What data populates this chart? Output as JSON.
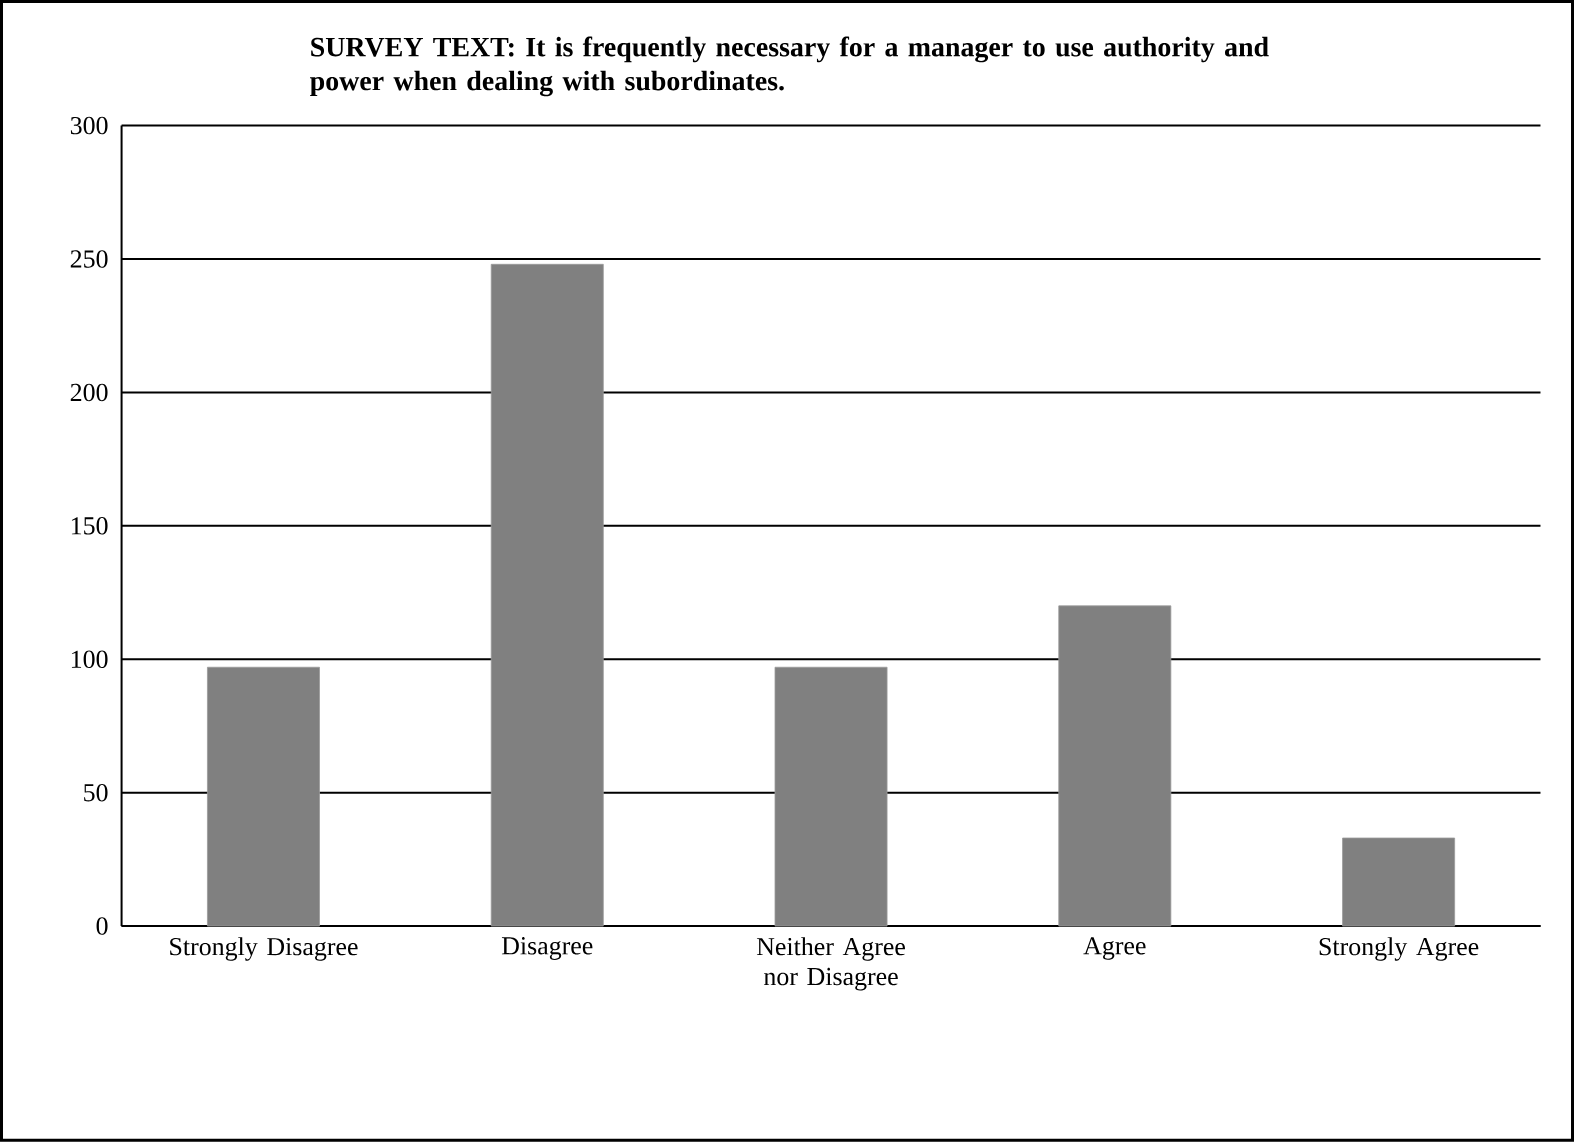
{
  "chart_data": {
    "type": "bar",
    "title": "SURVEY TEXT: It is frequently necessary for a manager to use authority and power when dealing with subordinates.",
    "categories": [
      "Strongly Disagree",
      "Disagree",
      "Neither Agree nor Disagree",
      "Agree",
      "Strongly Agree"
    ],
    "values": [
      97,
      248,
      97,
      120,
      33
    ],
    "color": "#808080",
    "ylim": [
      0,
      300
    ],
    "yticks": [
      0,
      50,
      100,
      150,
      200,
      250,
      300
    ],
    "grid": "y"
  }
}
